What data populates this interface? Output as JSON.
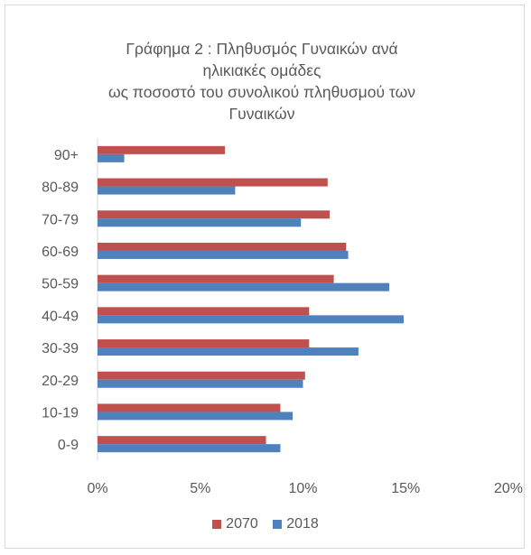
{
  "chart_data": {
    "type": "bar",
    "orientation": "horizontal",
    "title_lines": [
      "Γράφημα 2 : Πληθυσμός Γυναικών ανά",
      "ηλικιακές ομάδες",
      "ως ποσοστό του συνολικού πληθυσμού των",
      "Γυναικών"
    ],
    "categories": [
      "90+",
      "80-89",
      "70-79",
      "60-69",
      "50-59",
      "40-49",
      "30-39",
      "20-29",
      "10-19",
      "0-9"
    ],
    "series": [
      {
        "name": "2070",
        "color": "#c0504d",
        "values": [
          6.2,
          11.2,
          11.3,
          12.1,
          11.5,
          10.3,
          10.3,
          10.1,
          8.9,
          8.2
        ]
      },
      {
        "name": "2018",
        "color": "#4f81bd",
        "values": [
          1.3,
          6.7,
          9.9,
          12.2,
          14.2,
          14.9,
          12.7,
          10.0,
          9.5,
          8.9
        ]
      }
    ],
    "x_ticks": [
      "0%",
      "5%",
      "10%",
      "15%",
      "20%"
    ],
    "xlim": [
      0,
      20
    ],
    "grid": true,
    "legend_position": "bottom"
  }
}
